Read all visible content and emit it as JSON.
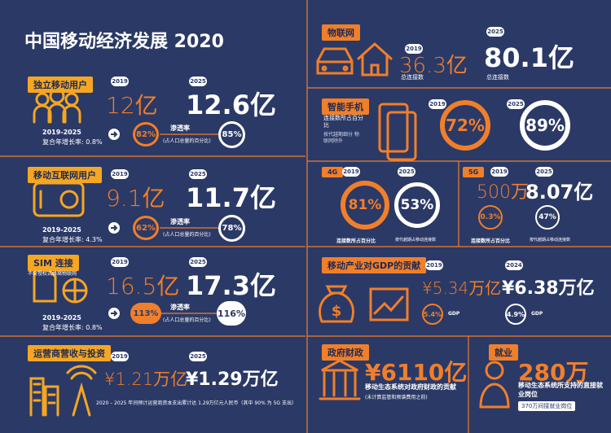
{
  "title": "中国移动经济发展 2020",
  "unique_users": {
    "label": "独立移动用户",
    "year_a": "2019",
    "value_a": "12亿",
    "year_b": "2025",
    "value_b": "12.6亿",
    "growth_years": "2019-2025",
    "growth_label": "复合年增长率: 0.8%",
    "pct_a": "82%",
    "pct_b": "85%",
    "pct_label": "渗透率",
    "pct_note": "(占人口总量的百分比)"
  },
  "mobile_internet": {
    "label": "移动互联网用户",
    "year_a": "2019",
    "value_a": "9.1亿",
    "year_b": "2025",
    "value_b": "11.7亿",
    "growth_years": "2019-2025",
    "growth_label": "复合年增长率: 4.3%",
    "pct_a": "62%",
    "pct_b": "78%",
    "pct_label": "渗透率",
    "pct_note": "(占人口总量的百分比)"
  },
  "sim": {
    "label": "SIM 连接",
    "sublabel": "不含授权式蜂窝物联网",
    "year_a": "2019",
    "value_a": "16.5亿",
    "year_b": "2025",
    "value_b": "17.3亿",
    "growth_years": "2019-2025",
    "growth_label": "复合年增长率: 0.8%",
    "pct_a": "113%",
    "pct_b": "116%",
    "pct_label": "渗透率",
    "pct_note": "(占人口总量的百分比)"
  },
  "operator_revenue": {
    "label": "运营商营收与投资",
    "year_a": "2019",
    "value_a": "¥1.21万亿",
    "year_b": "2025",
    "value_b": "¥1.29万亿",
    "note": "2020 – 2025 年间预计运营商资本支出累计达 1.29万亿元人民币（其中 90% 为 5G 支出）"
  },
  "iot": {
    "label": "物联网",
    "year_a": "2019",
    "value_a": "36.3亿",
    "caption_a": "总连接数",
    "year_b": "2025",
    "value_b": "80.1亿",
    "caption_b": "总连接数"
  },
  "smartphone": {
    "label": "智能手机",
    "caption": "连接数所占百分比",
    "caption_note": "按代越期细分 物联网除外",
    "year_a": "2019",
    "pct_a": "72%",
    "year_b": "2025",
    "pct_b": "89%"
  },
  "g4": {
    "label": "4G",
    "year_a": "2019",
    "year_b": "2025",
    "pct_a": "81%",
    "pct_b": "53%",
    "caption_a": "连接数所占百分比",
    "caption_b": "按代越期占移动连接数"
  },
  "g5": {
    "label": "5G",
    "year_a": "2019",
    "year_b": "2025",
    "value_a": "500万",
    "value_b": "8.07亿",
    "pct_a": "0.3%",
    "pct_b": "47%",
    "caption_a": "连接数所占百分比",
    "caption_b": "按代越期占移动连接数"
  },
  "gdp": {
    "label": "移动产业对GDP的贡献",
    "year_a": "2019",
    "value_a": "¥5.34万亿",
    "year_b": "2024",
    "value_b": "¥6.38万亿",
    "pct_a": "5.4%",
    "pct_caption_a": "GDP",
    "pct_b": "4.9%",
    "pct_caption_b": "GDP"
  },
  "tax": {
    "label": "政府财政",
    "value": "¥6110亿",
    "caption": "移动生态系统对政府财政的贡献",
    "note": "(未计算监管和频谱费用之前)"
  },
  "jobs": {
    "label": "就业",
    "value": "280万",
    "caption": "移动生态系统所支持的直接就业岗位",
    "indirect": "370万间接就业岗位"
  }
}
